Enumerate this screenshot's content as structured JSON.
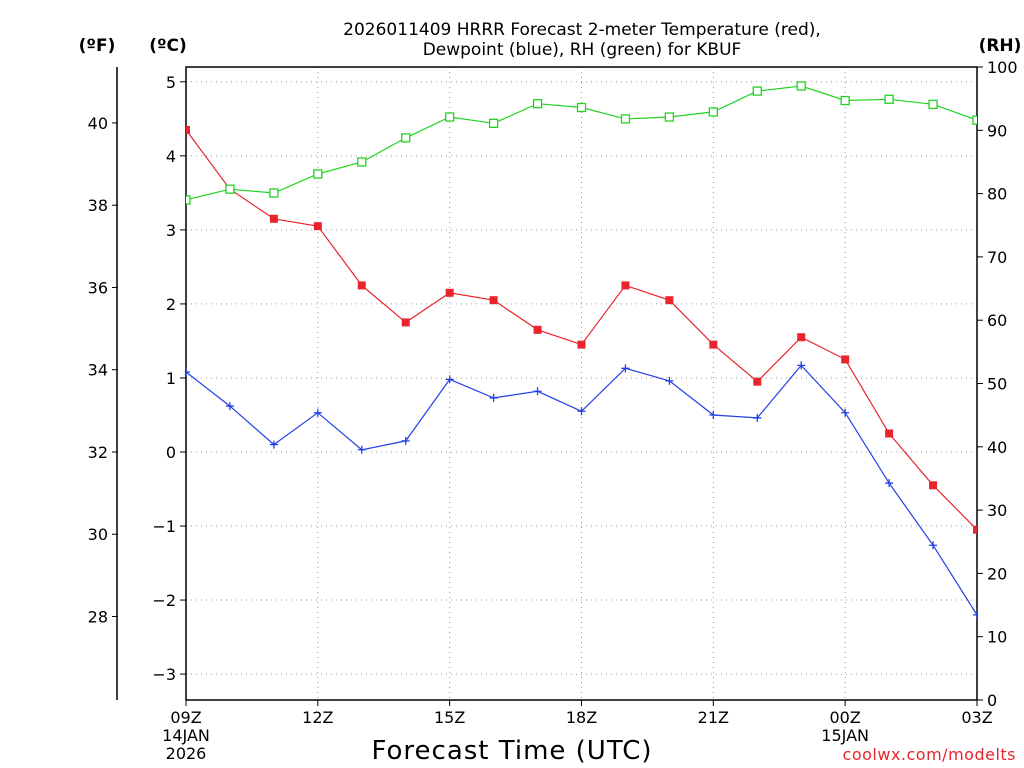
{
  "chart_data": {
    "type": "line",
    "title_line1": "2026011409 HRRR Forecast 2-meter Temperature (red),",
    "title_line2": "Dewpoint (blue), RH (green) for KBUF",
    "xlabel": "Forecast Time (UTC)",
    "credit": "coolwx.com/modelts",
    "unit_f": "(ºF)",
    "unit_c": "(ºC)",
    "unit_rh": "(RH)",
    "hours": [
      0,
      1,
      2,
      3,
      4,
      5,
      6,
      7,
      8,
      9,
      10,
      11,
      12,
      13,
      14,
      15,
      16,
      17,
      18
    ],
    "x_ticks": [
      {
        "hour": 0,
        "label": "09Z",
        "date1": "14JAN",
        "date2": "2026"
      },
      {
        "hour": 3,
        "label": "12Z"
      },
      {
        "hour": 6,
        "label": "15Z"
      },
      {
        "hour": 9,
        "label": "18Z"
      },
      {
        "hour": 12,
        "label": "21Z"
      },
      {
        "hour": 15,
        "label": "00Z",
        "date1": "15JAN"
      },
      {
        "hour": 18,
        "label": "03Z"
      }
    ],
    "ylim_c": [
      -3.35,
      5.2
    ],
    "ylim_rh": [
      0,
      100
    ],
    "y_ticks_c": [
      -3,
      -2,
      -1,
      0,
      1,
      2,
      3,
      4,
      5
    ],
    "y_ticks_f": [
      28,
      30,
      32,
      34,
      36,
      38,
      40
    ],
    "y_ticks_rh": [
      0,
      10,
      20,
      30,
      40,
      50,
      60,
      70,
      80,
      90,
      100
    ],
    "series": [
      {
        "name": "Temperature",
        "units": "°C",
        "color": "#e8242c",
        "marker": "filled-square",
        "values": [
          4.35,
          3.55,
          3.15,
          3.05,
          2.25,
          1.75,
          2.15,
          2.05,
          1.65,
          1.45,
          2.25,
          2.05,
          1.45,
          0.95,
          1.55,
          1.25,
          0.25,
          -0.45,
          -1.05
        ]
      },
      {
        "name": "Dewpoint",
        "units": "°C",
        "color": "#2140e8",
        "marker": "plus",
        "values": [
          1.08,
          0.62,
          0.1,
          0.53,
          0.03,
          0.15,
          0.98,
          0.73,
          0.82,
          0.55,
          1.13,
          0.96,
          0.5,
          0.46,
          1.17,
          0.53,
          -0.42,
          -1.26,
          -2.2
        ]
      },
      {
        "name": "RH",
        "units": "%",
        "color": "#22d422",
        "marker": "open-square",
        "values": [
          79.0,
          80.7,
          80.1,
          83.1,
          85.0,
          88.8,
          92.1,
          91.1,
          94.2,
          93.6,
          91.8,
          92.1,
          92.9,
          96.2,
          97.0,
          94.7,
          94.9,
          94.1,
          91.6
        ]
      }
    ]
  }
}
